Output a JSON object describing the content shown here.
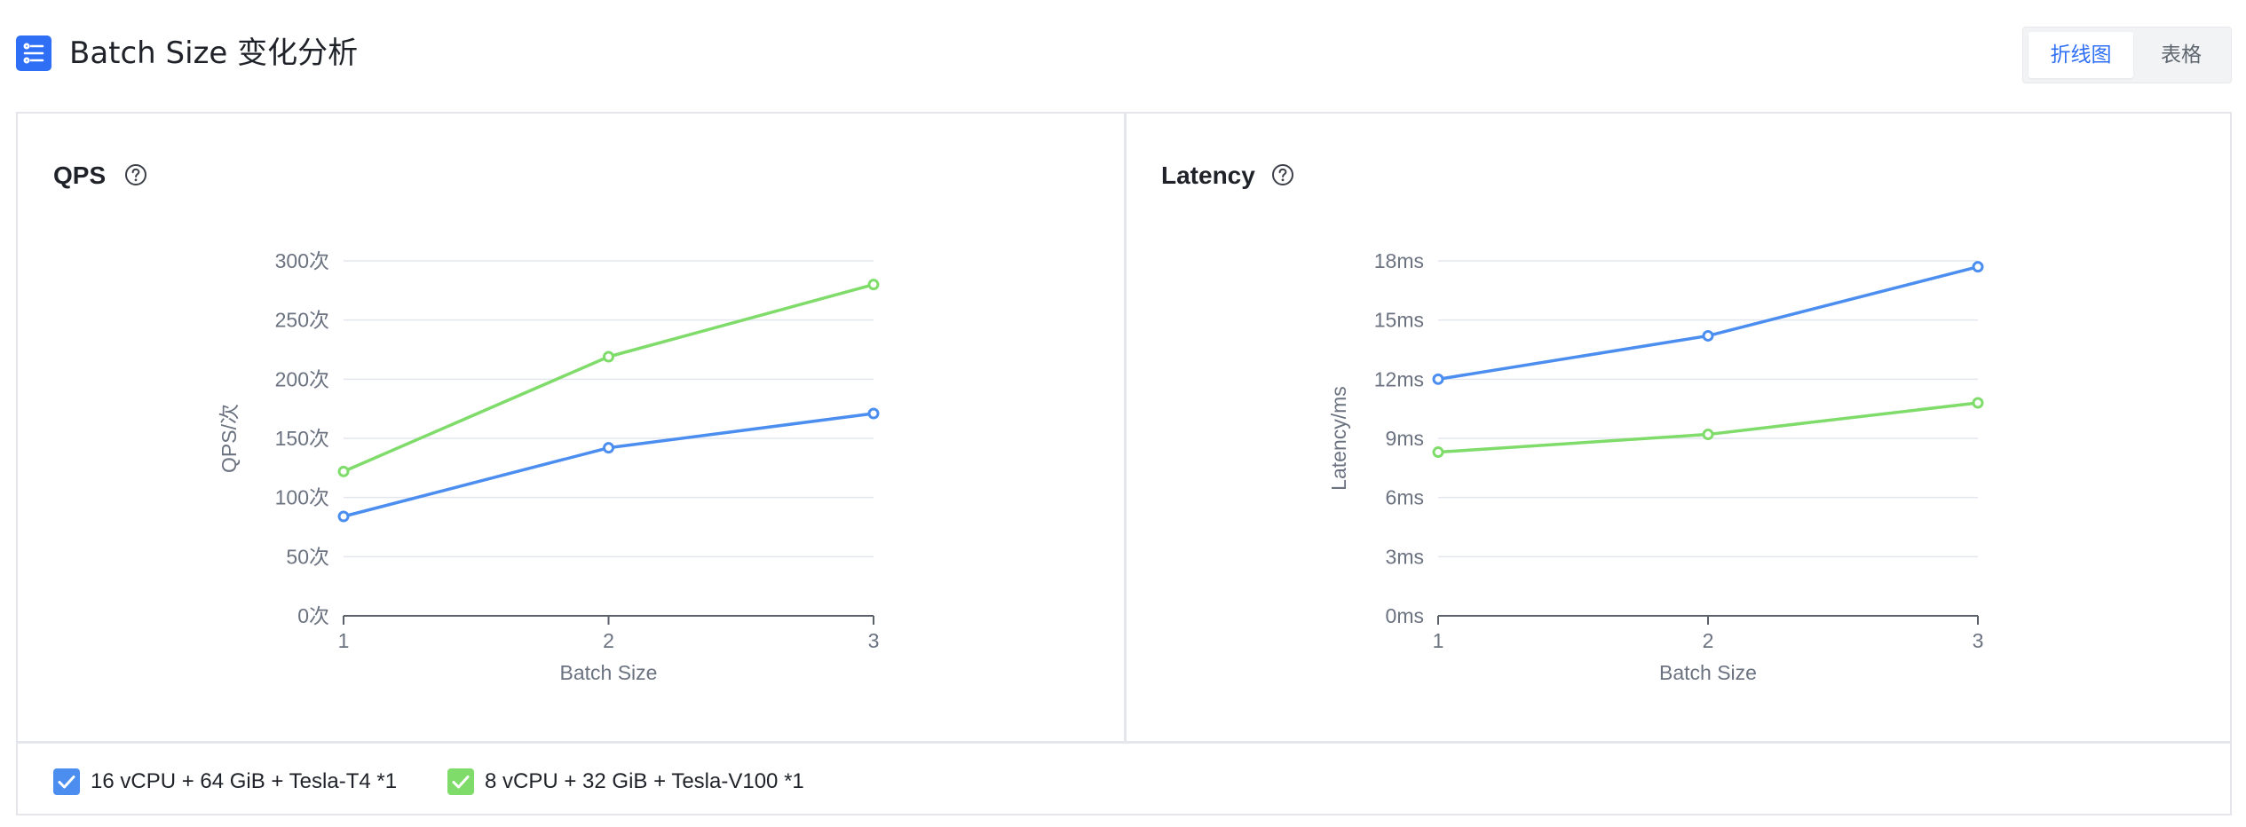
{
  "header": {
    "title": "Batch Size 变化分析",
    "view_toggle": {
      "line_label": "折线图",
      "table_label": "表格",
      "active": "line"
    }
  },
  "colors": {
    "accent": "#2e6ff5",
    "series_1": "#4b8ef0",
    "series_2": "#7fdc6a",
    "grid": "#e3e6ef",
    "axis_text": "#6b7280"
  },
  "icons": {
    "title": "list-settings-icon",
    "help": "question-circle-icon",
    "checkbox": "check-icon"
  },
  "legend": [
    {
      "label": "16 vCPU + 64 GiB + Tesla-T4 *1",
      "checked": true,
      "color": "#4b8ef0"
    },
    {
      "label": "8 vCPU + 32 GiB + Tesla-V100 *1",
      "checked": true,
      "color": "#7fdc6a"
    }
  ],
  "chart_data": [
    {
      "type": "line",
      "title": "QPS",
      "xlabel": "Batch Size",
      "ylabel": "QPS/次",
      "x": [
        1,
        2,
        3
      ],
      "ylim": [
        0,
        300
      ],
      "y_ticks": [
        0,
        50,
        100,
        150,
        200,
        250,
        300
      ],
      "y_tick_labels": [
        "0次",
        "50次",
        "100次",
        "150次",
        "200次",
        "250次",
        "300次"
      ],
      "x_tick_labels": [
        "1",
        "2",
        "3"
      ],
      "grid": true,
      "series": [
        {
          "name": "16 vCPU + 64 GiB + Tesla-T4 *1",
          "values": [
            84,
            142,
            171
          ]
        },
        {
          "name": "8 vCPU + 32 GiB + Tesla-V100 *1",
          "values": [
            122,
            219,
            280
          ]
        }
      ]
    },
    {
      "type": "line",
      "title": "Latency",
      "xlabel": "Batch Size",
      "ylabel": "Latency/ms",
      "x": [
        1,
        2,
        3
      ],
      "ylim": [
        0,
        18
      ],
      "y_ticks": [
        0,
        3,
        6,
        9,
        12,
        15,
        18
      ],
      "y_tick_labels": [
        "0ms",
        "3ms",
        "6ms",
        "9ms",
        "12ms",
        "15ms",
        "18ms"
      ],
      "x_tick_labels": [
        "1",
        "2",
        "3"
      ],
      "grid": true,
      "series": [
        {
          "name": "16 vCPU + 64 GiB + Tesla-T4 *1",
          "values": [
            12.0,
            14.2,
            17.7
          ]
        },
        {
          "name": "8 vCPU + 32 GiB + Tesla-V100 *1",
          "values": [
            8.3,
            9.2,
            10.8
          ]
        }
      ]
    }
  ]
}
